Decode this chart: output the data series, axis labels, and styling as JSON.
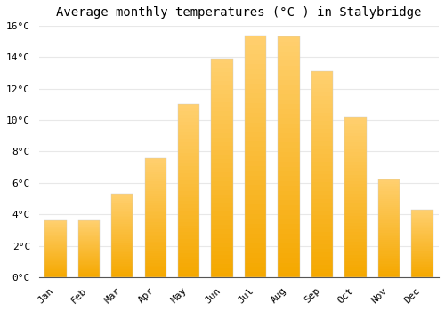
{
  "title": "Average monthly temperatures (°C ) in Stalybridge",
  "months": [
    "Jan",
    "Feb",
    "Mar",
    "Apr",
    "May",
    "Jun",
    "Jul",
    "Aug",
    "Sep",
    "Oct",
    "Nov",
    "Dec"
  ],
  "temperatures": [
    3.6,
    3.6,
    5.3,
    7.6,
    11.0,
    13.9,
    15.4,
    15.3,
    13.1,
    10.2,
    6.2,
    4.3
  ],
  "bar_color_bottom": "#F5A800",
  "bar_color_top": "#FFD070",
  "ylim": [
    0,
    16
  ],
  "yticks": [
    0,
    2,
    4,
    6,
    8,
    10,
    12,
    14,
    16
  ],
  "background_color": "#ffffff",
  "plot_bg_color": "#ffffff",
  "grid_color": "#e8e8e8",
  "title_fontsize": 10,
  "tick_fontsize": 8,
  "font_family": "monospace",
  "bar_width": 0.65,
  "bar_edge_color": "#cccccc",
  "bar_edge_width": 0.3
}
